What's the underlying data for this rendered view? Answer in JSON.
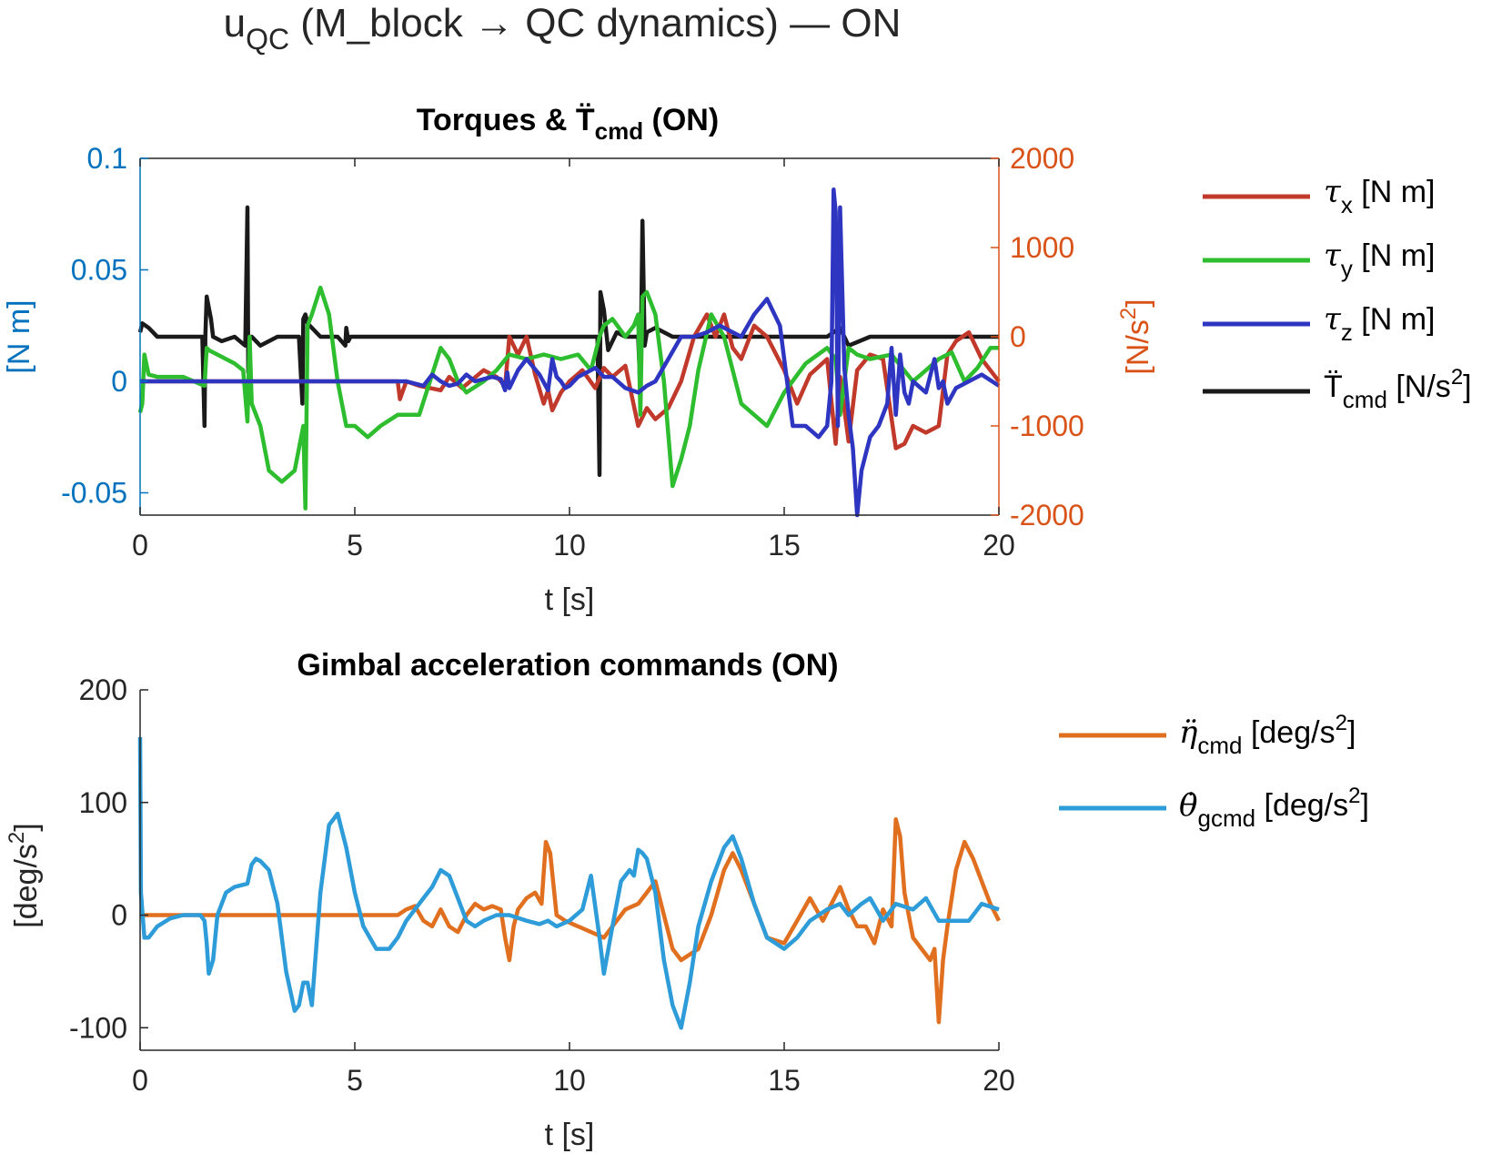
{
  "figure": {
    "suptitle_main": "u",
    "suptitle_sub": "QC",
    "suptitle_rest": " (M_block → QC dynamics) — ON"
  },
  "colors": {
    "left_axis": "#0072BD",
    "right_axis": "#D95319",
    "tau_x": "#C0392B",
    "tau_y": "#2EBD2E",
    "tau_z": "#2E35C0",
    "T_cmd": "#1A1A1A",
    "eta_cmd": "#E07020",
    "theta_gcmd": "#2E9CD8"
  },
  "chart_data": [
    {
      "type": "line",
      "title": "Torques & T̈",
      "title_sub": "cmd",
      "title_end": " (ON)",
      "xlabel": "t [s]",
      "ylabel_left": "[N m]",
      "ylabel_right": "[N/s",
      "ylabel_right_sup": "2",
      "ylabel_right_end": "]",
      "xlim": [
        0,
        20
      ],
      "ylim_left": [
        -0.06,
        0.1
      ],
      "ylim_right": [
        -2000,
        2000
      ],
      "xticks": [
        "0",
        "5",
        "10",
        "15",
        "20"
      ],
      "yticks_left": [
        "-0.05",
        "0",
        "0.05",
        "0.1"
      ],
      "yticks_right": [
        "-2000",
        "-1000",
        "0",
        "1000",
        "2000"
      ],
      "legend": [
        {
          "sym": "τ",
          "sub": "x",
          "unit": " [N m]",
          "series": "tau_x"
        },
        {
          "sym": "τ",
          "sub": "y",
          "unit": " [N m]",
          "series": "tau_y"
        },
        {
          "sym": "τ",
          "sub": "z",
          "unit": " [N m]",
          "series": "tau_z"
        },
        {
          "sym": "T̈",
          "sub": "cmd",
          "unit": " [N/s",
          "sup": "2",
          "end": "]",
          "series": "T_cmd"
        }
      ],
      "series": [
        {
          "key": "tau_x",
          "axis": "left",
          "x": [
            0,
            6.0,
            6.05,
            6.2,
            6.5,
            7.0,
            7.2,
            7.5,
            8.0,
            8.3,
            8.5,
            8.6,
            8.8,
            9.0,
            9.2,
            9.4,
            9.5,
            9.6,
            9.8,
            10.0,
            10.3,
            10.6,
            10.8,
            11.0,
            11.3,
            11.6,
            11.8,
            12.0,
            12.3,
            12.6,
            12.9,
            13.2,
            13.4,
            13.6,
            13.8,
            14.0,
            14.3,
            14.6,
            15.0,
            15.3,
            15.6,
            16.0,
            16.2,
            16.3,
            16.5,
            16.7,
            17.0,
            17.3,
            17.6,
            17.8,
            18.0,
            18.3,
            18.6,
            18.8,
            19.0,
            19.3,
            19.6,
            20.0
          ],
          "y": [
            0,
            0,
            -0.008,
            0,
            -0.002,
            -0.004,
            0.002,
            -0.003,
            0.005,
            0.002,
            -0.002,
            0.02,
            0.012,
            0.02,
            0.003,
            -0.01,
            -0.004,
            -0.013,
            -0.005,
            0,
            0.005,
            -0.003,
            0.006,
            0.002,
            0.007,
            -0.02,
            -0.012,
            -0.017,
            -0.012,
            0,
            0.02,
            0.03,
            0.02,
            0.03,
            0.015,
            0.01,
            0.025,
            0.02,
            0.005,
            -0.01,
            0.003,
            0.01,
            -0.028,
            0.002,
            -0.027,
            0.005,
            0.012,
            0.01,
            -0.03,
            -0.028,
            -0.02,
            -0.023,
            -0.02,
            0.012,
            0.018,
            0.022,
            0.01,
            0
          ]
        },
        {
          "key": "tau_y",
          "axis": "left",
          "x": [
            0,
            0.05,
            0.1,
            0.2,
            0.4,
            1.0,
            1.5,
            1.55,
            1.6,
            1.8,
            2.0,
            2.2,
            2.4,
            2.5,
            2.55,
            2.6,
            2.8,
            3.0,
            3.3,
            3.6,
            3.8,
            3.85,
            3.9,
            4.0,
            4.2,
            4.4,
            4.6,
            4.8,
            5.0,
            5.3,
            5.6,
            6.0,
            6.5,
            7.0,
            7.2,
            7.4,
            7.6,
            8.0,
            8.3,
            8.6,
            9.0,
            9.4,
            9.8,
            10.2,
            10.5,
            10.7,
            10.8,
            11.0,
            11.3,
            11.5,
            11.6,
            11.65,
            11.7,
            11.8,
            12.0,
            12.2,
            12.4,
            12.6,
            12.8,
            13.0,
            13.3,
            13.6,
            13.8,
            14.0,
            14.3,
            14.6,
            15.0,
            15.5,
            16.0,
            16.2,
            16.3,
            16.5,
            16.7,
            17.0,
            17.5,
            18.0,
            18.3,
            18.6,
            18.9,
            19.2,
            19.5,
            19.8,
            20.0
          ],
          "y": [
            -0.014,
            -0.01,
            0.012,
            0.003,
            0.002,
            0.002,
            -0.002,
            0.015,
            0.014,
            0.012,
            0.01,
            0.008,
            0.005,
            -0.018,
            0.02,
            -0.01,
            -0.02,
            -0.04,
            -0.045,
            -0.04,
            -0.02,
            -0.057,
            0.025,
            0.03,
            0.042,
            0.03,
            0,
            -0.02,
            -0.02,
            -0.025,
            -0.02,
            -0.015,
            -0.015,
            0.015,
            0.01,
            0,
            -0.005,
            0,
            0.005,
            0.012,
            0.01,
            0.012,
            0.01,
            0.012,
            0.005,
            0.02,
            0.025,
            0.028,
            0.02,
            0.025,
            0.03,
            -0.015,
            0.038,
            0.04,
            0.03,
            0,
            -0.047,
            -0.035,
            -0.02,
            0.005,
            0.03,
            0.02,
            0.005,
            -0.01,
            -0.015,
            -0.02,
            -0.005,
            0.008,
            0.015,
            0.01,
            -0.015,
            0.015,
            0.012,
            0.01,
            0.012,
            0.0,
            0.005,
            0.01,
            0.013,
            0.0,
            0.006,
            0.015,
            0.015
          ]
        },
        {
          "key": "tau_z",
          "axis": "left",
          "x": [
            0,
            5.8,
            6.0,
            6.2,
            6.6,
            6.8,
            7.0,
            7.2,
            7.4,
            7.6,
            7.8,
            8.0,
            8.2,
            8.4,
            8.5,
            8.55,
            8.6,
            8.8,
            9.0,
            9.3,
            9.5,
            9.6,
            9.7,
            9.8,
            9.9,
            10.0,
            10.2,
            10.4,
            10.6,
            10.8,
            11.0,
            11.3,
            11.6,
            11.8,
            12.0,
            12.3,
            12.6,
            12.9,
            13.2,
            13.5,
            13.8,
            14.0,
            14.3,
            14.6,
            14.9,
            15.2,
            15.5,
            15.8,
            16.0,
            16.1,
            16.15,
            16.2,
            16.25,
            16.3,
            16.4,
            16.5,
            16.6,
            16.7,
            16.8,
            17.0,
            17.2,
            17.4,
            17.5,
            17.6,
            17.7,
            17.8,
            17.9,
            18.0,
            18.3,
            18.5,
            18.6,
            18.7,
            18.8,
            19.0,
            19.3,
            19.6,
            20.0
          ],
          "y": [
            0,
            0,
            0,
            0,
            -0.002,
            0.003,
            0,
            -0.002,
            -0.001,
            0.003,
            0,
            0.001,
            0.002,
            0.001,
            -0.004,
            0.004,
            -0.003,
            0.005,
            0.01,
            0.003,
            -0.004,
            0.01,
            0.002,
            0,
            -0.003,
            -0.002,
            0.002,
            0.004,
            0.006,
            0.002,
            0.002,
            -0.003,
            -0.005,
            -0.002,
            0,
            0.01,
            0.02,
            0.02,
            0.022,
            0.025,
            0.022,
            0.02,
            0.03,
            0.037,
            0.025,
            -0.02,
            -0.02,
            -0.025,
            -0.02,
            0,
            0.086,
            0.076,
            -0.02,
            0.078,
            0.006,
            -0.015,
            -0.03,
            -0.06,
            -0.04,
            -0.025,
            -0.02,
            -0.01,
            0.015,
            -0.015,
            0.012,
            -0.005,
            -0.01,
            0.0,
            -0.005,
            0.01,
            -0.003,
            0.0,
            -0.01,
            -0.003,
            0,
            0.003,
            -0.002
          ]
        },
        {
          "key": "T_cmd",
          "axis": "right",
          "x": [
            0,
            0.05,
            0.2,
            0.4,
            0.8,
            1.2,
            1.45,
            1.5,
            1.52,
            1.55,
            1.65,
            1.7,
            1.9,
            2.2,
            2.45,
            2.5,
            2.52,
            2.55,
            2.6,
            2.8,
            3.2,
            3.7,
            3.78,
            3.8,
            3.85,
            3.9,
            4.2,
            4.6,
            4.78,
            4.8,
            4.85,
            4.9,
            5.2,
            6,
            7,
            8,
            9,
            10,
            10.5,
            10.65,
            10.7,
            10.72,
            10.8,
            10.9,
            11.1,
            11.3,
            11.6,
            11.65,
            11.7,
            11.75,
            11.8,
            12.0,
            12.4,
            13,
            14,
            15,
            16,
            16.3,
            16.5,
            17,
            18,
            19,
            20
          ],
          "y": [
            50,
            150,
            100,
            0,
            0,
            0,
            0,
            -1000,
            0,
            450,
            200,
            0,
            -50,
            0,
            -100,
            1450,
            -400,
            0,
            0,
            -100,
            0,
            0,
            -750,
            200,
            250,
            150,
            0,
            0,
            -100,
            100,
            -50,
            0,
            0,
            0,
            0,
            0,
            0,
            0,
            0,
            0,
            -1550,
            500,
            300,
            -150,
            50,
            0,
            0,
            -600,
            1300,
            -100,
            50,
            100,
            0,
            0,
            0,
            0,
            0,
            100,
            -100,
            0,
            0,
            0,
            0
          ]
        }
      ]
    },
    {
      "type": "line",
      "title": "Gimbal acceleration commands (ON)",
      "xlabel": "t [s]",
      "ylabel": "[deg/s",
      "ylabel_sup": "2",
      "ylabel_end": "]",
      "xlim": [
        0,
        20
      ],
      "ylim": [
        -120,
        200
      ],
      "xticks": [
        "0",
        "5",
        "10",
        "15",
        "20"
      ],
      "yticks": [
        "-100",
        "0",
        "100",
        "200"
      ],
      "legend": [
        {
          "sym": "η̈",
          "sub": "cmd",
          "unit": " [deg/s",
          "sup": "2",
          "end": "]",
          "series": "eta_cmd"
        },
        {
          "sym": "θ̇",
          "sub": "gcmd",
          "unit": " [deg/s",
          "sup": "2",
          "end": "]",
          "series": "theta_gcmd"
        }
      ],
      "series": [
        {
          "key": "eta_cmd",
          "x": [
            0,
            6.0,
            6.2,
            6.4,
            6.6,
            6.8,
            7.0,
            7.2,
            7.4,
            7.6,
            7.8,
            8.0,
            8.2,
            8.4,
            8.5,
            8.6,
            8.7,
            8.8,
            9.0,
            9.2,
            9.35,
            9.45,
            9.55,
            9.7,
            9.9,
            10.2,
            10.5,
            10.8,
            11.0,
            11.3,
            11.6,
            11.8,
            12.0,
            12.2,
            12.4,
            12.6,
            12.8,
            13.0,
            13.3,
            13.6,
            13.8,
            14.0,
            14.3,
            14.6,
            15.0,
            15.3,
            15.6,
            15.9,
            16.1,
            16.3,
            16.5,
            16.7,
            16.9,
            17.1,
            17.3,
            17.5,
            17.6,
            17.7,
            17.8,
            18.0,
            18.2,
            18.4,
            18.5,
            18.6,
            18.7,
            18.8,
            19.0,
            19.2,
            19.4,
            19.6,
            19.8,
            20.0
          ],
          "y": [
            0,
            0,
            5,
            8,
            -5,
            -10,
            5,
            -10,
            -15,
            0,
            10,
            5,
            8,
            5,
            -20,
            -40,
            -10,
            5,
            15,
            20,
            10,
            65,
            55,
            0,
            -5,
            -10,
            -15,
            -20,
            -10,
            5,
            10,
            20,
            30,
            0,
            -30,
            -40,
            -35,
            -30,
            0,
            40,
            55,
            40,
            10,
            -20,
            -25,
            -5,
            15,
            -5,
            10,
            25,
            5,
            -10,
            -10,
            -25,
            5,
            -10,
            85,
            70,
            20,
            -20,
            -30,
            -40,
            -30,
            -95,
            -40,
            -10,
            40,
            65,
            50,
            30,
            10,
            -5
          ]
        },
        {
          "key": "theta_gcmd",
          "x": [
            0,
            0.02,
            0.1,
            0.2,
            0.4,
            0.7,
            1.0,
            1.4,
            1.5,
            1.55,
            1.6,
            1.7,
            1.8,
            2.0,
            2.2,
            2.5,
            2.6,
            2.7,
            2.8,
            3.0,
            3.2,
            3.4,
            3.6,
            3.7,
            3.8,
            3.9,
            4.0,
            4.2,
            4.4,
            4.6,
            4.8,
            5.0,
            5.2,
            5.5,
            5.8,
            6.0,
            6.2,
            6.4,
            6.6,
            6.8,
            7.0,
            7.2,
            7.4,
            7.6,
            7.8,
            8.0,
            8.3,
            8.6,
            9.0,
            9.3,
            9.5,
            9.7,
            10.0,
            10.3,
            10.5,
            10.7,
            10.8,
            11.0,
            11.2,
            11.4,
            11.5,
            11.6,
            11.7,
            11.8,
            12.0,
            12.2,
            12.4,
            12.6,
            12.8,
            13.0,
            13.3,
            13.6,
            13.8,
            14.0,
            14.3,
            14.6,
            15.0,
            15.3,
            15.6,
            16.0,
            16.3,
            16.5,
            16.8,
            17.0,
            17.3,
            17.6,
            18.0,
            18.3,
            18.6,
            19.0,
            19.3,
            19.6,
            20.0
          ],
          "y": [
            158,
            20,
            -20,
            -20,
            -10,
            -3,
            0,
            0,
            -5,
            -25,
            -52,
            -40,
            0,
            20,
            25,
            28,
            45,
            50,
            48,
            40,
            10,
            -50,
            -85,
            -80,
            -60,
            -60,
            -80,
            20,
            80,
            90,
            60,
            20,
            -10,
            -30,
            -30,
            -20,
            -5,
            5,
            15,
            25,
            40,
            35,
            15,
            -5,
            -10,
            -5,
            0,
            0,
            -5,
            -8,
            -5,
            -10,
            -5,
            5,
            35,
            -20,
            -52,
            -10,
            30,
            40,
            35,
            58,
            55,
            50,
            20,
            -40,
            -80,
            -100,
            -60,
            -10,
            30,
            60,
            70,
            50,
            10,
            -20,
            -30,
            -20,
            -5,
            5,
            10,
            0,
            10,
            15,
            -5,
            10,
            5,
            15,
            -5,
            -5,
            -5,
            10,
            5
          ]
        }
      ]
    }
  ]
}
